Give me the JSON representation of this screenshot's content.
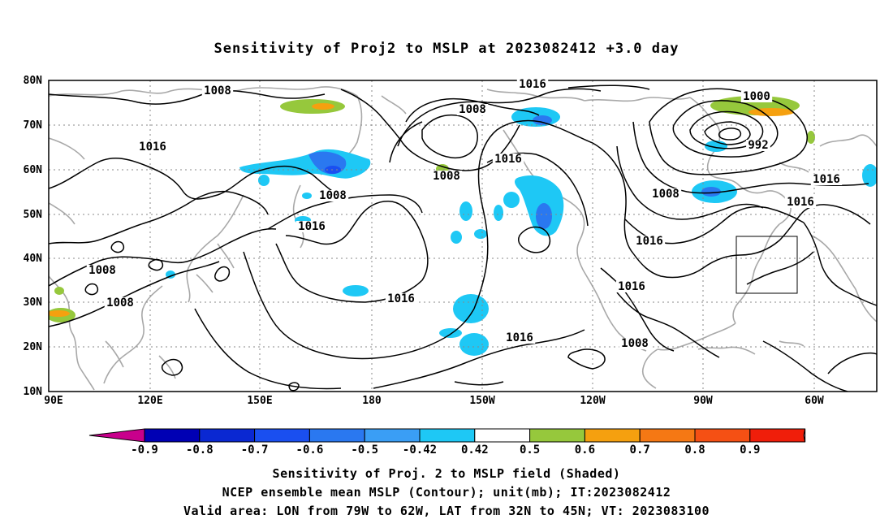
{
  "title": "Sensitivity of Proj2 to MSLP at 2023082412 +3.0 day",
  "map": {
    "lat_labels": [
      "80N",
      "70N",
      "60N",
      "50N",
      "40N",
      "30N",
      "20N",
      "10N"
    ],
    "lon_labels": [
      "90E",
      "120E",
      "150E",
      "180",
      "150W",
      "120W",
      "90W",
      "60W"
    ],
    "contour_labels": [
      {
        "text": "1008",
        "place": "north-asia"
      },
      {
        "text": "1016",
        "place": "arctic-pacific"
      },
      {
        "text": "1008",
        "place": "bering-low"
      },
      {
        "text": "1000",
        "place": "hudson-low"
      },
      {
        "text": "1016",
        "place": "siberia"
      },
      {
        "text": "992",
        "place": "hudson-low-center"
      },
      {
        "text": "1016",
        "place": "alaska-ridge"
      },
      {
        "text": "1008",
        "place": "gulf-alaska"
      },
      {
        "text": "1008",
        "place": "okhotsk"
      },
      {
        "text": "1016",
        "place": "atlantic-north"
      },
      {
        "text": "1008",
        "place": "canada"
      },
      {
        "text": "1016",
        "place": "atlantic"
      },
      {
        "text": "1016",
        "place": "west-pacific"
      },
      {
        "text": "1016",
        "place": "north-america"
      },
      {
        "text": "1008",
        "place": "india-north"
      },
      {
        "text": "1016",
        "place": "california"
      },
      {
        "text": "1008",
        "place": "india-south"
      },
      {
        "text": "1016",
        "place": "subtropical-high"
      },
      {
        "text": "1016",
        "place": "hawaii"
      },
      {
        "text": "1008",
        "place": "mexico"
      }
    ],
    "valid_box": {
      "lon_west": "79W",
      "lon_east": "62W",
      "lat_south": "32N",
      "lat_north": "45N"
    }
  },
  "colorbar": {
    "labels": [
      "-0.9",
      "-0.8",
      "-0.7",
      "-0.6",
      "-0.5",
      "-0.42",
      "0.42",
      "0.5",
      "0.6",
      "0.7",
      "0.8",
      "0.9"
    ],
    "colors": [
      "#c8008c",
      "#0000b4",
      "#0a28d2",
      "#1a4ff0",
      "#2a78f0",
      "#3a9ef5",
      "#1ec8f5",
      "#ffffff",
      "#96c83c",
      "#f5a00f",
      "#f57814",
      "#f55014",
      "#f01e0a",
      "#f5a0c8"
    ]
  },
  "footer": {
    "line1": "Sensitivity of Proj. 2 to MSLP field (Shaded)",
    "line2": "NCEP ensemble mean MSLP (Contour); unit(mb); IT:2023082412",
    "line3": "Valid area: LON from 79W to 62W, LAT from 32N to 45N; VT: 2023083100"
  }
}
